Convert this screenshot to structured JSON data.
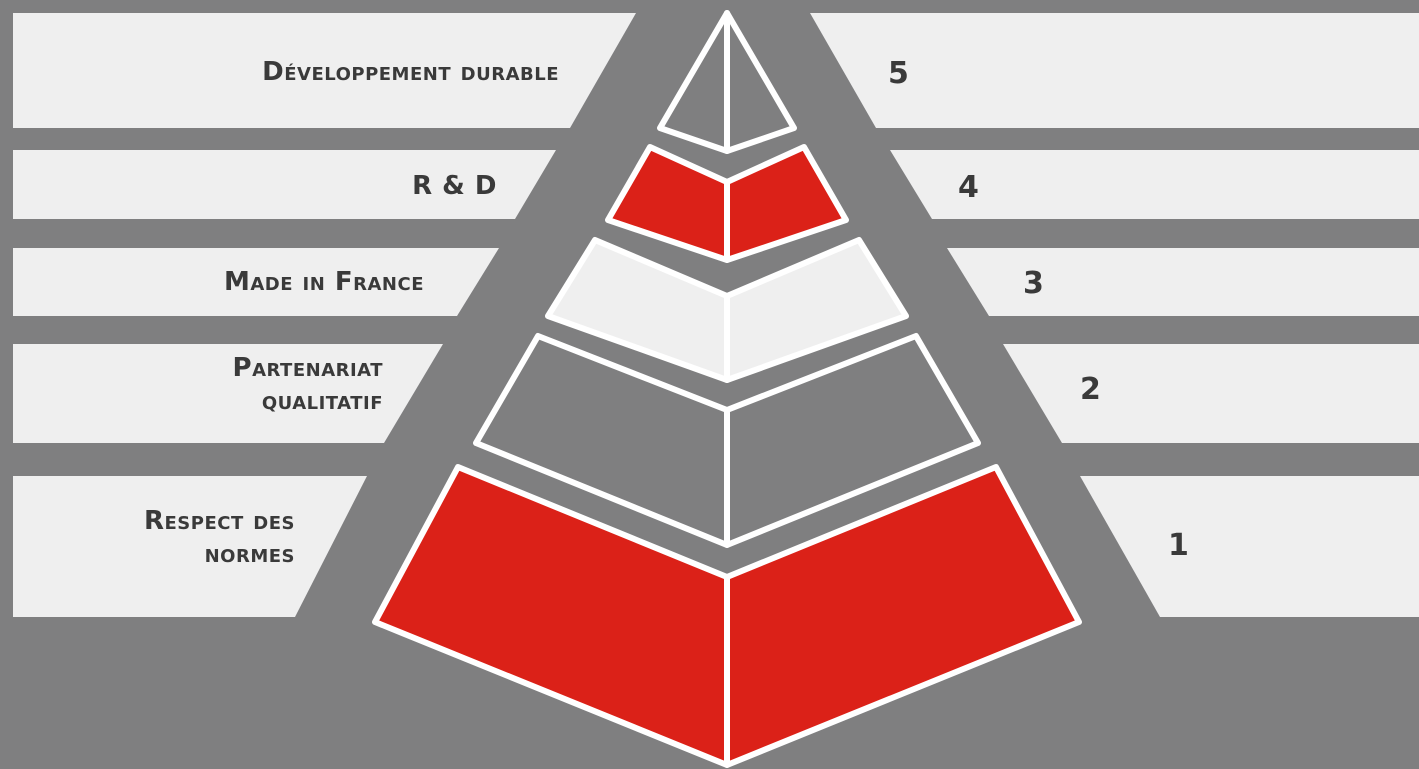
{
  "pyramid": {
    "levels": [
      {
        "number": "5",
        "label": "Développement durable",
        "color": "#7f7f80"
      },
      {
        "number": "4",
        "label": "R & D",
        "color": "#db2118"
      },
      {
        "number": "3",
        "label": "Made in France",
        "color": "#efefef"
      },
      {
        "number": "2",
        "label": "Partenariat qualitatif",
        "color": "#7f7f80"
      },
      {
        "number": "1",
        "label": "Respect des normes",
        "color": "#db2118"
      }
    ],
    "band_color": "#efefef",
    "background": "#7f7f80"
  }
}
